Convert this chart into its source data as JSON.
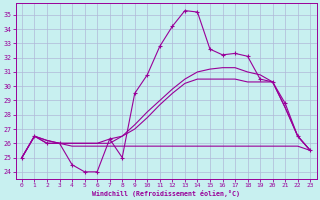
{
  "xlabel": "Windchill (Refroidissement éolien,°C)",
  "background_color": "#c8f0f0",
  "grid_color": "#b0b8d8",
  "line_color": "#990099",
  "xlim": [
    -0.5,
    23.5
  ],
  "ylim": [
    23.5,
    35.8
  ],
  "yticks": [
    24,
    25,
    26,
    27,
    28,
    29,
    30,
    31,
    32,
    33,
    34,
    35
  ],
  "xticks": [
    0,
    1,
    2,
    3,
    4,
    5,
    6,
    7,
    8,
    9,
    10,
    11,
    12,
    13,
    14,
    15,
    16,
    17,
    18,
    19,
    20,
    21,
    22,
    23
  ],
  "line1_y": [
    25.0,
    26.5,
    26.0,
    26.0,
    24.5,
    24.0,
    24.0,
    26.3,
    25.0,
    29.5,
    30.8,
    32.8,
    34.2,
    35.3,
    35.2,
    32.6,
    32.2,
    32.3,
    32.1,
    30.5,
    30.3,
    28.8,
    26.5,
    25.5
  ],
  "line2_y": [
    25.0,
    26.5,
    26.0,
    26.0,
    25.8,
    25.8,
    25.8,
    25.8,
    25.8,
    25.8,
    25.8,
    25.8,
    25.8,
    25.8,
    25.8,
    25.8,
    25.8,
    25.8,
    25.8,
    25.8,
    25.8,
    25.8,
    25.8,
    25.5
  ],
  "line3_y": [
    25.0,
    26.5,
    26.2,
    26.0,
    26.0,
    26.0,
    26.0,
    26.3,
    26.5,
    27.0,
    27.8,
    28.7,
    29.5,
    30.2,
    30.5,
    30.5,
    30.5,
    30.5,
    30.3,
    30.3,
    30.3,
    28.5,
    26.5,
    25.5
  ],
  "line4_y": [
    25.0,
    26.5,
    26.2,
    26.0,
    26.0,
    26.0,
    26.0,
    26.0,
    26.5,
    27.3,
    28.2,
    29.0,
    29.8,
    30.5,
    31.0,
    31.2,
    31.3,
    31.3,
    31.0,
    30.8,
    30.3,
    28.5,
    26.5,
    25.5
  ]
}
